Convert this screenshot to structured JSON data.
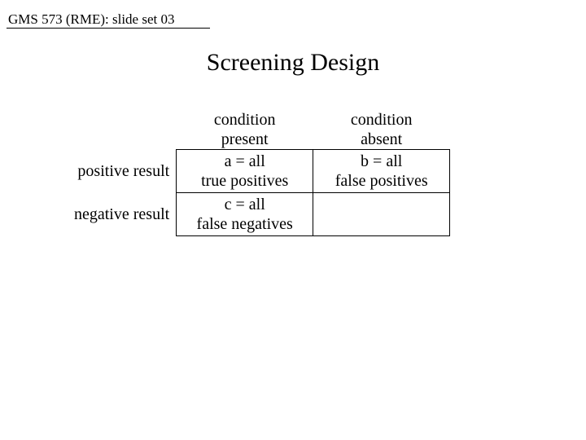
{
  "header": "GMS 573 (RME): slide set 03",
  "title": "Screening Design",
  "table": {
    "col1_head_line1": "condition",
    "col1_head_line2": "present",
    "col2_head_line1": "condition",
    "col2_head_line2": "absent",
    "row1_label": "positive result",
    "row2_label": "negative result",
    "cell_a_line1": "a = all",
    "cell_a_line2": "true positives",
    "cell_b_line1": "b = all",
    "cell_b_line2": "false positives",
    "cell_c_line1": "c = all",
    "cell_c_line2": "false negatives",
    "cell_d": ""
  },
  "colors": {
    "text": "#000000",
    "background": "#ffffff",
    "border": "#000000"
  },
  "fonts": {
    "family": "Times New Roman",
    "header_size_pt": 13,
    "title_size_pt": 22,
    "body_size_pt": 15
  }
}
